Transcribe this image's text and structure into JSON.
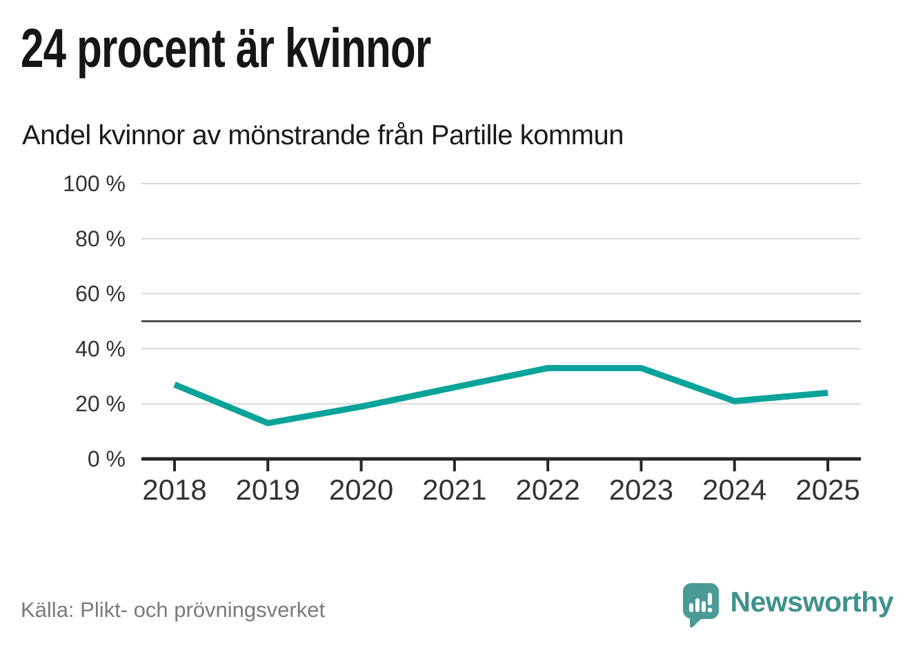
{
  "header": {
    "title": "24 procent är kvinnor",
    "subtitle": "Andel kvinnor av mönstrande från Partille kommun"
  },
  "chart_data": {
    "type": "line",
    "title": "24 procent är kvinnor",
    "subtitle": "Andel kvinnor av mönstrande från Partille kommun",
    "categories": [
      "2018",
      "2019",
      "2020",
      "2021",
      "2022",
      "2023",
      "2024",
      "2025"
    ],
    "series": [
      {
        "name": "Andel kvinnor av mönstrande",
        "values": [
          27,
          13,
          19,
          26,
          33,
          33,
          21,
          24
        ]
      }
    ],
    "unit": "%",
    "ylim": [
      0,
      100
    ],
    "yticks": [
      0,
      20,
      40,
      60,
      80,
      100
    ],
    "ytick_labels": [
      "0 %",
      "20 %",
      "40 %",
      "60 %",
      "80 %",
      "100 %"
    ],
    "reference_line": 50,
    "grid": "horizontal-only",
    "legend": "none",
    "colors": {
      "line": "#0aa39a",
      "reference_line": "#4f4f4f",
      "gridline": "#d9d9d9",
      "axis": "#262626",
      "tick_labels": "#333333"
    }
  },
  "footer": {
    "source": "Källa: Plikt- och prövningsverket",
    "brand_name": "Newsworthy",
    "brand_color": "#3f918e",
    "logo_color": "#4a9a95"
  },
  "icons": {
    "logo": "newsworthy-speech-bubble-bar-chart-icon"
  }
}
